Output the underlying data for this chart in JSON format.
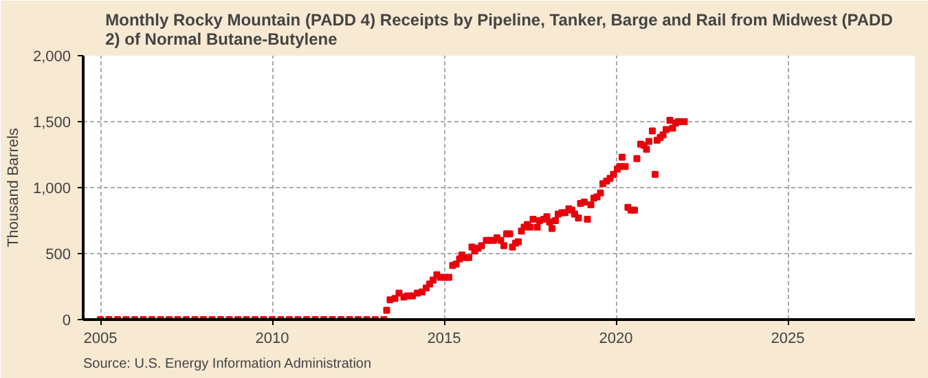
{
  "chart_data": {
    "type": "scatter",
    "title": "Monthly Rocky Mountain (PADD 4) Receipts by Pipeline, Tanker, Barge and Rail from Midwest (PADD 2) of Normal Butane-Butylene",
    "ylabel": "Thousand Barrels",
    "annotations": [
      "Source: U.S. Energy Information Administration"
    ],
    "marker": "square",
    "grid": true,
    "xlim": [
      2004.5,
      2028.7
    ],
    "xticks": [
      2005,
      2010,
      2015,
      2020,
      2025
    ],
    "ylim": [
      0,
      2000
    ],
    "yticks": [
      0,
      {
        "value": 500,
        "label": "500"
      },
      {
        "value": 1000,
        "label": "1,000"
      },
      {
        "value": 1500,
        "label": "1,500"
      },
      {
        "value": 2000,
        "label": "2,000"
      }
    ],
    "series": [
      {
        "color": "#e8000b",
        "x": [
          2005.0,
          2005.25,
          2005.5,
          2005.75,
          2006.0,
          2006.25,
          2006.5,
          2006.75,
          2007.0,
          2007.25,
          2007.5,
          2007.75,
          2008.0,
          2008.25,
          2008.5,
          2008.75,
          2009.0,
          2009.25,
          2009.5,
          2009.75,
          2010.0,
          2010.25,
          2010.5,
          2010.75,
          2011.0,
          2011.25,
          2011.5,
          2011.75,
          2012.0,
          2012.25,
          2012.5,
          2012.75,
          2013.0,
          2013.25,
          2013.33,
          2013.43,
          2013.57,
          2013.69,
          2013.83,
          2013.94,
          2014.08,
          2014.22,
          2014.36,
          2014.48,
          2014.58,
          2014.68,
          2014.79,
          2014.89,
          2015.03,
          2015.14,
          2015.25,
          2015.35,
          2015.45,
          2015.52,
          2015.64,
          2015.72,
          2015.81,
          2015.89,
          2015.99,
          2016.09,
          2016.23,
          2016.34,
          2016.44,
          2016.54,
          2016.65,
          2016.74,
          2016.82,
          2016.91,
          2016.99,
          2017.08,
          2017.16,
          2017.25,
          2017.33,
          2017.42,
          2017.5,
          2017.59,
          2017.71,
          2017.78,
          2017.9,
          2017.99,
          2018.07,
          2018.14,
          2018.24,
          2018.32,
          2018.43,
          2018.52,
          2018.63,
          2018.72,
          2018.8,
          2018.91,
          2018.97,
          2019.08,
          2019.17,
          2019.27,
          2019.36,
          2019.45,
          2019.55,
          2019.62,
          2019.73,
          2019.83,
          2019.93,
          2020.04,
          2020.11,
          2020.18,
          2020.27,
          2020.35,
          2020.44,
          2020.54,
          2020.61,
          2020.72,
          2020.82,
          2020.89,
          2020.96,
          2021.06,
          2021.14,
          2021.2,
          2021.29,
          2021.37,
          2021.46,
          2021.57,
          2021.65,
          2021.74,
          2021.82,
          2021.99
        ],
        "values": [
          0,
          0,
          0,
          0,
          0,
          0,
          0,
          0,
          0,
          0,
          0,
          0,
          0,
          0,
          0,
          0,
          0,
          0,
          0,
          0,
          0,
          0,
          0,
          0,
          0,
          0,
          0,
          0,
          0,
          0,
          0,
          0,
          0,
          0,
          70,
          150,
          160,
          200,
          170,
          180,
          180,
          200,
          210,
          240,
          270,
          300,
          340,
          320,
          320,
          320,
          410,
          420,
          460,
          490,
          470,
          470,
          550,
          520,
          540,
          560,
          600,
          600,
          600,
          620,
          600,
          560,
          650,
          650,
          550,
          580,
          590,
          670,
          700,
          720,
          700,
          760,
          700,
          750,
          760,
          780,
          740,
          690,
          750,
          800,
          810,
          810,
          840,
          830,
          800,
          770,
          880,
          890,
          760,
          870,
          920,
          930,
          960,
          1030,
          1050,
          1070,
          1100,
          1140,
          1160,
          1230,
          1160,
          850,
          830,
          830,
          1220,
          1330,
          1320,
          1290,
          1350,
          1430,
          1100,
          1360,
          1380,
          1400,
          1440,
          1510,
          1450,
          1490,
          1500,
          1500
        ]
      }
    ]
  }
}
